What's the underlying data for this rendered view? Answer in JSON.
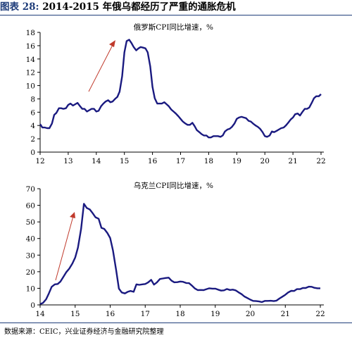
{
  "figure": {
    "label": "图表 28:",
    "title": "2014-2015 年俄乌都经历了严重的通胀危机",
    "source": "数据来源：CEIC，兴业证券经济与金融研究院整理"
  },
  "colors": {
    "line": "#1a1a80",
    "arrow": "#c0392b",
    "title_blue": "#1f3d7a"
  },
  "chart_data": [
    {
      "type": "line",
      "title": "俄罗斯CPI同比增速，%",
      "xlim": [
        2012,
        2022.1
      ],
      "ylim": [
        0,
        18
      ],
      "yticks": [
        0,
        2,
        4,
        6,
        8,
        10,
        12,
        14,
        16,
        18
      ],
      "xticks": [
        {
          "value": 2012,
          "label": "12"
        },
        {
          "value": 2013,
          "label": "13"
        },
        {
          "value": 2014,
          "label": "14"
        },
        {
          "value": 2015,
          "label": "15"
        },
        {
          "value": 2016,
          "label": "16"
        },
        {
          "value": 2017,
          "label": "17"
        },
        {
          "value": 2018,
          "label": "18"
        },
        {
          "value": 2019,
          "label": "19"
        },
        {
          "value": 2020,
          "label": "20"
        },
        {
          "value": 2021,
          "label": "21"
        },
        {
          "value": 2022,
          "label": "22"
        }
      ],
      "grid": false,
      "series": [
        {
          "x": [
            2012.0,
            2012.08,
            2012.17,
            2012.25,
            2012.33,
            2012.42,
            2012.5,
            2012.58,
            2012.67,
            2012.75,
            2012.83,
            2012.92,
            2013.0,
            2013.08,
            2013.17,
            2013.25,
            2013.33,
            2013.42,
            2013.5,
            2013.58,
            2013.67,
            2013.75,
            2013.83,
            2013.92,
            2014.0,
            2014.08,
            2014.17,
            2014.25,
            2014.33,
            2014.42,
            2014.5,
            2014.58,
            2014.67,
            2014.75,
            2014.83,
            2014.92,
            2015.0,
            2015.08,
            2015.17,
            2015.25,
            2015.33,
            2015.42,
            2015.5,
            2015.58,
            2015.67,
            2015.75,
            2015.83,
            2015.92,
            2016.0,
            2016.08,
            2016.17,
            2016.25,
            2016.33,
            2016.42,
            2016.5,
            2016.58,
            2016.67,
            2016.75,
            2016.83,
            2016.92,
            2017.0,
            2017.08,
            2017.17,
            2017.25,
            2017.33,
            2017.42,
            2017.5,
            2017.58,
            2017.67,
            2017.75,
            2017.83,
            2017.92,
            2018.0,
            2018.08,
            2018.17,
            2018.25,
            2018.33,
            2018.42,
            2018.5,
            2018.58,
            2018.67,
            2018.75,
            2018.83,
            2018.92,
            2019.0,
            2019.08,
            2019.17,
            2019.25,
            2019.33,
            2019.42,
            2019.5,
            2019.58,
            2019.67,
            2019.75,
            2019.83,
            2019.92,
            2020.0,
            2020.08,
            2020.17,
            2020.25,
            2020.33,
            2020.42,
            2020.5,
            2020.58,
            2020.67,
            2020.75,
            2020.83,
            2020.92,
            2021.0,
            2021.08,
            2021.17,
            2021.25,
            2021.33,
            2021.42,
            2021.5,
            2021.58,
            2021.67,
            2021.75,
            2021.83,
            2021.92,
            2022.0
          ],
          "y": [
            4.2,
            3.7,
            3.7,
            3.6,
            3.6,
            4.3,
            5.6,
            5.9,
            6.6,
            6.6,
            6.5,
            6.6,
            7.1,
            7.3,
            7.0,
            7.2,
            7.4,
            6.9,
            6.5,
            6.5,
            6.1,
            6.3,
            6.5,
            6.5,
            6.1,
            6.2,
            6.9,
            7.3,
            7.6,
            7.8,
            7.5,
            7.6,
            8.0,
            8.3,
            9.1,
            11.4,
            15.0,
            16.7,
            16.9,
            16.4,
            15.8,
            15.3,
            15.6,
            15.8,
            15.7,
            15.6,
            15.0,
            12.9,
            9.8,
            8.1,
            7.3,
            7.3,
            7.3,
            7.5,
            7.2,
            6.9,
            6.4,
            6.1,
            5.8,
            5.4,
            5.0,
            4.6,
            4.3,
            4.1,
            4.1,
            4.4,
            3.9,
            3.3,
            3.0,
            2.7,
            2.5,
            2.5,
            2.2,
            2.2,
            2.4,
            2.4,
            2.4,
            2.3,
            2.5,
            3.1,
            3.4,
            3.5,
            3.8,
            4.3,
            5.0,
            5.2,
            5.3,
            5.2,
            5.1,
            4.7,
            4.6,
            4.3,
            4.0,
            3.8,
            3.5,
            3.0,
            2.4,
            2.3,
            2.5,
            3.1,
            3.0,
            3.2,
            3.4,
            3.6,
            3.7,
            4.0,
            4.4,
            4.9,
            5.2,
            5.7,
            5.8,
            5.5,
            6.0,
            6.5,
            6.5,
            6.7,
            7.4,
            8.1,
            8.4,
            8.4,
            8.7
          ]
        }
      ]
    },
    {
      "type": "line",
      "title": "乌克兰CPI同比增速，%",
      "xlim": [
        2014,
        2022.1
      ],
      "ylim": [
        0,
        70
      ],
      "yticks": [
        0,
        10,
        20,
        30,
        40,
        50,
        60,
        70
      ],
      "xticks": [
        {
          "value": 2014,
          "label": "14"
        },
        {
          "value": 2015,
          "label": "15"
        },
        {
          "value": 2016,
          "label": "16"
        },
        {
          "value": 2017,
          "label": "17"
        },
        {
          "value": 2018,
          "label": "18"
        },
        {
          "value": 2019,
          "label": "19"
        },
        {
          "value": 2020,
          "label": "20"
        },
        {
          "value": 2021,
          "label": "21"
        },
        {
          "value": 2022,
          "label": "22"
        }
      ],
      "grid": false,
      "series": [
        {
          "x": [
            2014.0,
            2014.08,
            2014.17,
            2014.25,
            2014.33,
            2014.42,
            2014.5,
            2014.58,
            2014.67,
            2014.75,
            2014.83,
            2014.92,
            2015.0,
            2015.08,
            2015.17,
            2015.25,
            2015.33,
            2015.42,
            2015.5,
            2015.58,
            2015.67,
            2015.75,
            2015.83,
            2015.92,
            2016.0,
            2016.08,
            2016.17,
            2016.25,
            2016.33,
            2016.42,
            2016.5,
            2016.58,
            2016.67,
            2016.75,
            2016.83,
            2016.92,
            2017.0,
            2017.08,
            2017.17,
            2017.25,
            2017.33,
            2017.42,
            2017.5,
            2017.58,
            2017.67,
            2017.75,
            2017.83,
            2017.92,
            2018.0,
            2018.08,
            2018.17,
            2018.25,
            2018.33,
            2018.42,
            2018.5,
            2018.58,
            2018.67,
            2018.75,
            2018.83,
            2018.92,
            2019.0,
            2019.08,
            2019.17,
            2019.25,
            2019.33,
            2019.42,
            2019.5,
            2019.58,
            2019.67,
            2019.75,
            2019.83,
            2019.92,
            2020.0,
            2020.08,
            2020.17,
            2020.25,
            2020.33,
            2020.42,
            2020.5,
            2020.58,
            2020.67,
            2020.75,
            2020.83,
            2020.92,
            2021.0,
            2021.08,
            2021.17,
            2021.25,
            2021.33,
            2021.42,
            2021.5,
            2021.58,
            2021.67,
            2021.75,
            2021.83,
            2021.92,
            2022.0
          ],
          "y": [
            0.5,
            1.2,
            3.4,
            6.9,
            10.9,
            12.4,
            12.6,
            14.1,
            17.1,
            19.8,
            21.8,
            24.9,
            28.5,
            34.5,
            45.8,
            60.9,
            58.4,
            57.5,
            55.3,
            52.8,
            51.9,
            46.4,
            45.8,
            43.3,
            40.3,
            32.7,
            20.9,
            9.8,
            7.5,
            6.9,
            7.9,
            8.4,
            7.9,
            12.4,
            12.1,
            12.4,
            12.6,
            13.5,
            15.1,
            12.2,
            13.5,
            15.6,
            15.9,
            16.2,
            16.4,
            14.6,
            13.6,
            13.7,
            14.1,
            13.9,
            13.2,
            13.1,
            11.7,
            9.9,
            8.9,
            9.0,
            8.9,
            9.5,
            10.0,
            9.8,
            9.8,
            9.2,
            8.6,
            8.8,
            9.6,
            9.0,
            9.2,
            8.8,
            7.5,
            6.5,
            5.1,
            4.1,
            3.2,
            2.4,
            2.3,
            2.1,
            1.7,
            2.4,
            2.4,
            2.5,
            2.3,
            2.6,
            3.8,
            5.0,
            6.1,
            7.5,
            8.5,
            8.4,
            9.5,
            9.5,
            10.2,
            10.2,
            11.0,
            10.9,
            10.3,
            10.0,
            10.0
          ]
        }
      ],
      "annotations": []
    }
  ]
}
